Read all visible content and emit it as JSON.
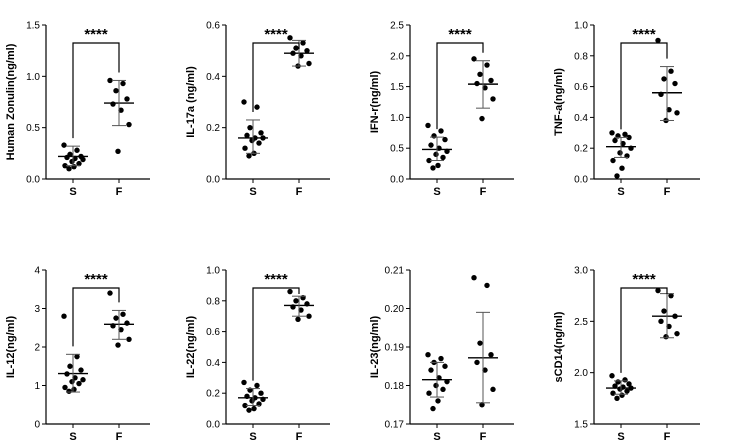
{
  "chart_data": [
    {
      "type": "scatter",
      "ylabel": "Human Zonulin(ng/ml)",
      "ylim": [
        0,
        1.5
      ],
      "yticks": [
        "0.0",
        "0.5",
        "1.0",
        "1.5"
      ],
      "categories": [
        "S",
        "F"
      ],
      "series": [
        {
          "values": [
            0.33,
            0.28,
            0.24,
            0.22,
            0.21,
            0.2,
            0.19,
            0.17,
            0.15,
            0.13,
            0.12,
            0.1
          ],
          "mean": 0.22,
          "sd_low": 0.13,
          "sd_high": 0.32
        },
        {
          "values": [
            0.96,
            0.93,
            0.86,
            0.78,
            0.73,
            0.67,
            0.53,
            0.27
          ],
          "mean": 0.74,
          "sd_low": 0.52,
          "sd_high": 0.96
        }
      ],
      "significance": "****"
    },
    {
      "type": "scatter",
      "ylabel": "IL-17a (ng/ml)",
      "ylim": [
        0,
        0.6
      ],
      "yticks": [
        "0.0",
        "0.2",
        "0.4",
        "0.6"
      ],
      "categories": [
        "S",
        "F"
      ],
      "series": [
        {
          "values": [
            0.3,
            0.28,
            0.2,
            0.18,
            0.17,
            0.16,
            0.16,
            0.15,
            0.14,
            0.12,
            0.1,
            0.09
          ],
          "mean": 0.16,
          "sd_low": 0.1,
          "sd_high": 0.23
        },
        {
          "values": [
            0.55,
            0.53,
            0.51,
            0.5,
            0.49,
            0.48,
            0.45,
            0.44
          ],
          "mean": 0.49,
          "sd_low": 0.44,
          "sd_high": 0.54
        }
      ],
      "significance": "****"
    },
    {
      "type": "scatter",
      "ylabel": "IFN-r(ng/ml)",
      "ylim": [
        0,
        2.5
      ],
      "yticks": [
        "0.0",
        "0.5",
        "1.0",
        "1.5",
        "2.0",
        "2.5"
      ],
      "categories": [
        "S",
        "F"
      ],
      "series": [
        {
          "values": [
            0.87,
            0.78,
            0.7,
            0.64,
            0.55,
            0.5,
            0.45,
            0.4,
            0.35,
            0.3,
            0.22,
            0.18
          ],
          "mean": 0.48,
          "sd_low": 0.3,
          "sd_high": 0.68
        },
        {
          "values": [
            1.95,
            1.85,
            1.7,
            1.6,
            1.55,
            1.48,
            1.3,
            0.98
          ],
          "mean": 1.54,
          "sd_low": 1.15,
          "sd_high": 1.92
        }
      ],
      "significance": "****"
    },
    {
      "type": "scatter",
      "ylabel": "TNF-a(ng/ml)",
      "ylim": [
        0,
        1.0
      ],
      "yticks": [
        "0.0",
        "0.2",
        "0.4",
        "0.6",
        "0.8",
        "1.0"
      ],
      "categories": [
        "S",
        "F"
      ],
      "series": [
        {
          "values": [
            0.3,
            0.29,
            0.28,
            0.27,
            0.25,
            0.23,
            0.2,
            0.17,
            0.15,
            0.12,
            0.07,
            0.02
          ],
          "mean": 0.21,
          "sd_low": 0.14,
          "sd_high": 0.27
        },
        {
          "values": [
            0.9,
            0.7,
            0.65,
            0.62,
            0.55,
            0.45,
            0.43,
            0.38
          ],
          "mean": 0.56,
          "sd_low": 0.38,
          "sd_high": 0.73
        },
        {
          "values": [],
          "mean": null
        }
      ],
      "significance": "****"
    },
    {
      "type": "scatter",
      "ylabel": "IL-12(ng/ml)",
      "ylim": [
        0,
        4
      ],
      "yticks": [
        "0",
        "1",
        "2",
        "3",
        "4"
      ],
      "categories": [
        "S",
        "F"
      ],
      "series": [
        {
          "values": [
            2.8,
            1.75,
            1.5,
            1.4,
            1.3,
            1.2,
            1.15,
            1.1,
            1.05,
            0.95,
            0.9,
            0.85
          ],
          "mean": 1.31,
          "sd_low": 0.83,
          "sd_high": 1.81
        },
        {
          "values": [
            3.4,
            2.85,
            2.75,
            2.62,
            2.55,
            2.45,
            2.2,
            2.05
          ],
          "mean": 2.59,
          "sd_low": 2.2,
          "sd_high": 2.95
        }
      ],
      "significance": "****"
    },
    {
      "type": "scatter",
      "ylabel": "IL-22(ng/ml)",
      "ylim": [
        0,
        1.0
      ],
      "yticks": [
        "0.0",
        "0.2",
        "0.4",
        "0.6",
        "0.8",
        "1.0"
      ],
      "categories": [
        "S",
        "F"
      ],
      "series": [
        {
          "values": [
            0.27,
            0.25,
            0.22,
            0.2,
            0.18,
            0.17,
            0.16,
            0.15,
            0.13,
            0.12,
            0.1,
            0.09
          ],
          "mean": 0.17,
          "sd_low": 0.12,
          "sd_high": 0.23
        },
        {
          "values": [
            0.86,
            0.82,
            0.8,
            0.78,
            0.76,
            0.74,
            0.7,
            0.68
          ],
          "mean": 0.77,
          "sd_low": 0.7,
          "sd_high": 0.83
        }
      ],
      "significance": "****"
    },
    {
      "type": "scatter",
      "ylabel": "IL-23(ng/ml)",
      "ylim": [
        0.17,
        0.21
      ],
      "yticks": [
        "0.17",
        "0.18",
        "0.19",
        "0.20",
        "0.21"
      ],
      "categories": [
        "S",
        "F"
      ],
      "series": [
        {
          "values": [
            0.188,
            0.187,
            0.186,
            0.185,
            0.184,
            0.182,
            0.181,
            0.18,
            0.179,
            0.178,
            0.176,
            0.174
          ],
          "mean": 0.1815,
          "sd_low": 0.177,
          "sd_high": 0.186
        },
        {
          "values": [
            0.208,
            0.206,
            0.191,
            0.188,
            0.186,
            0.184,
            0.179,
            0.175
          ],
          "mean": 0.1872,
          "sd_low": 0.1755,
          "sd_high": 0.199
        }
      ],
      "significance": ""
    },
    {
      "type": "scatter",
      "ylabel": "sCD14(ng/ml)",
      "ylim": [
        1.5,
        3.0
      ],
      "yticks": [
        "1.5",
        "2.0",
        "2.5",
        "3.0"
      ],
      "categories": [
        "S",
        "F"
      ],
      "series": [
        {
          "values": [
            1.97,
            1.93,
            1.91,
            1.89,
            1.87,
            1.86,
            1.85,
            1.84,
            1.82,
            1.8,
            1.78,
            1.75
          ],
          "mean": 1.85,
          "sd_low": 1.79,
          "sd_high": 1.92
        },
        {
          "values": [
            2.8,
            2.75,
            2.6,
            2.55,
            2.5,
            2.45,
            2.38,
            2.35
          ],
          "mean": 2.55,
          "sd_low": 2.34,
          "sd_high": 2.77
        }
      ],
      "significance": "****"
    }
  ]
}
